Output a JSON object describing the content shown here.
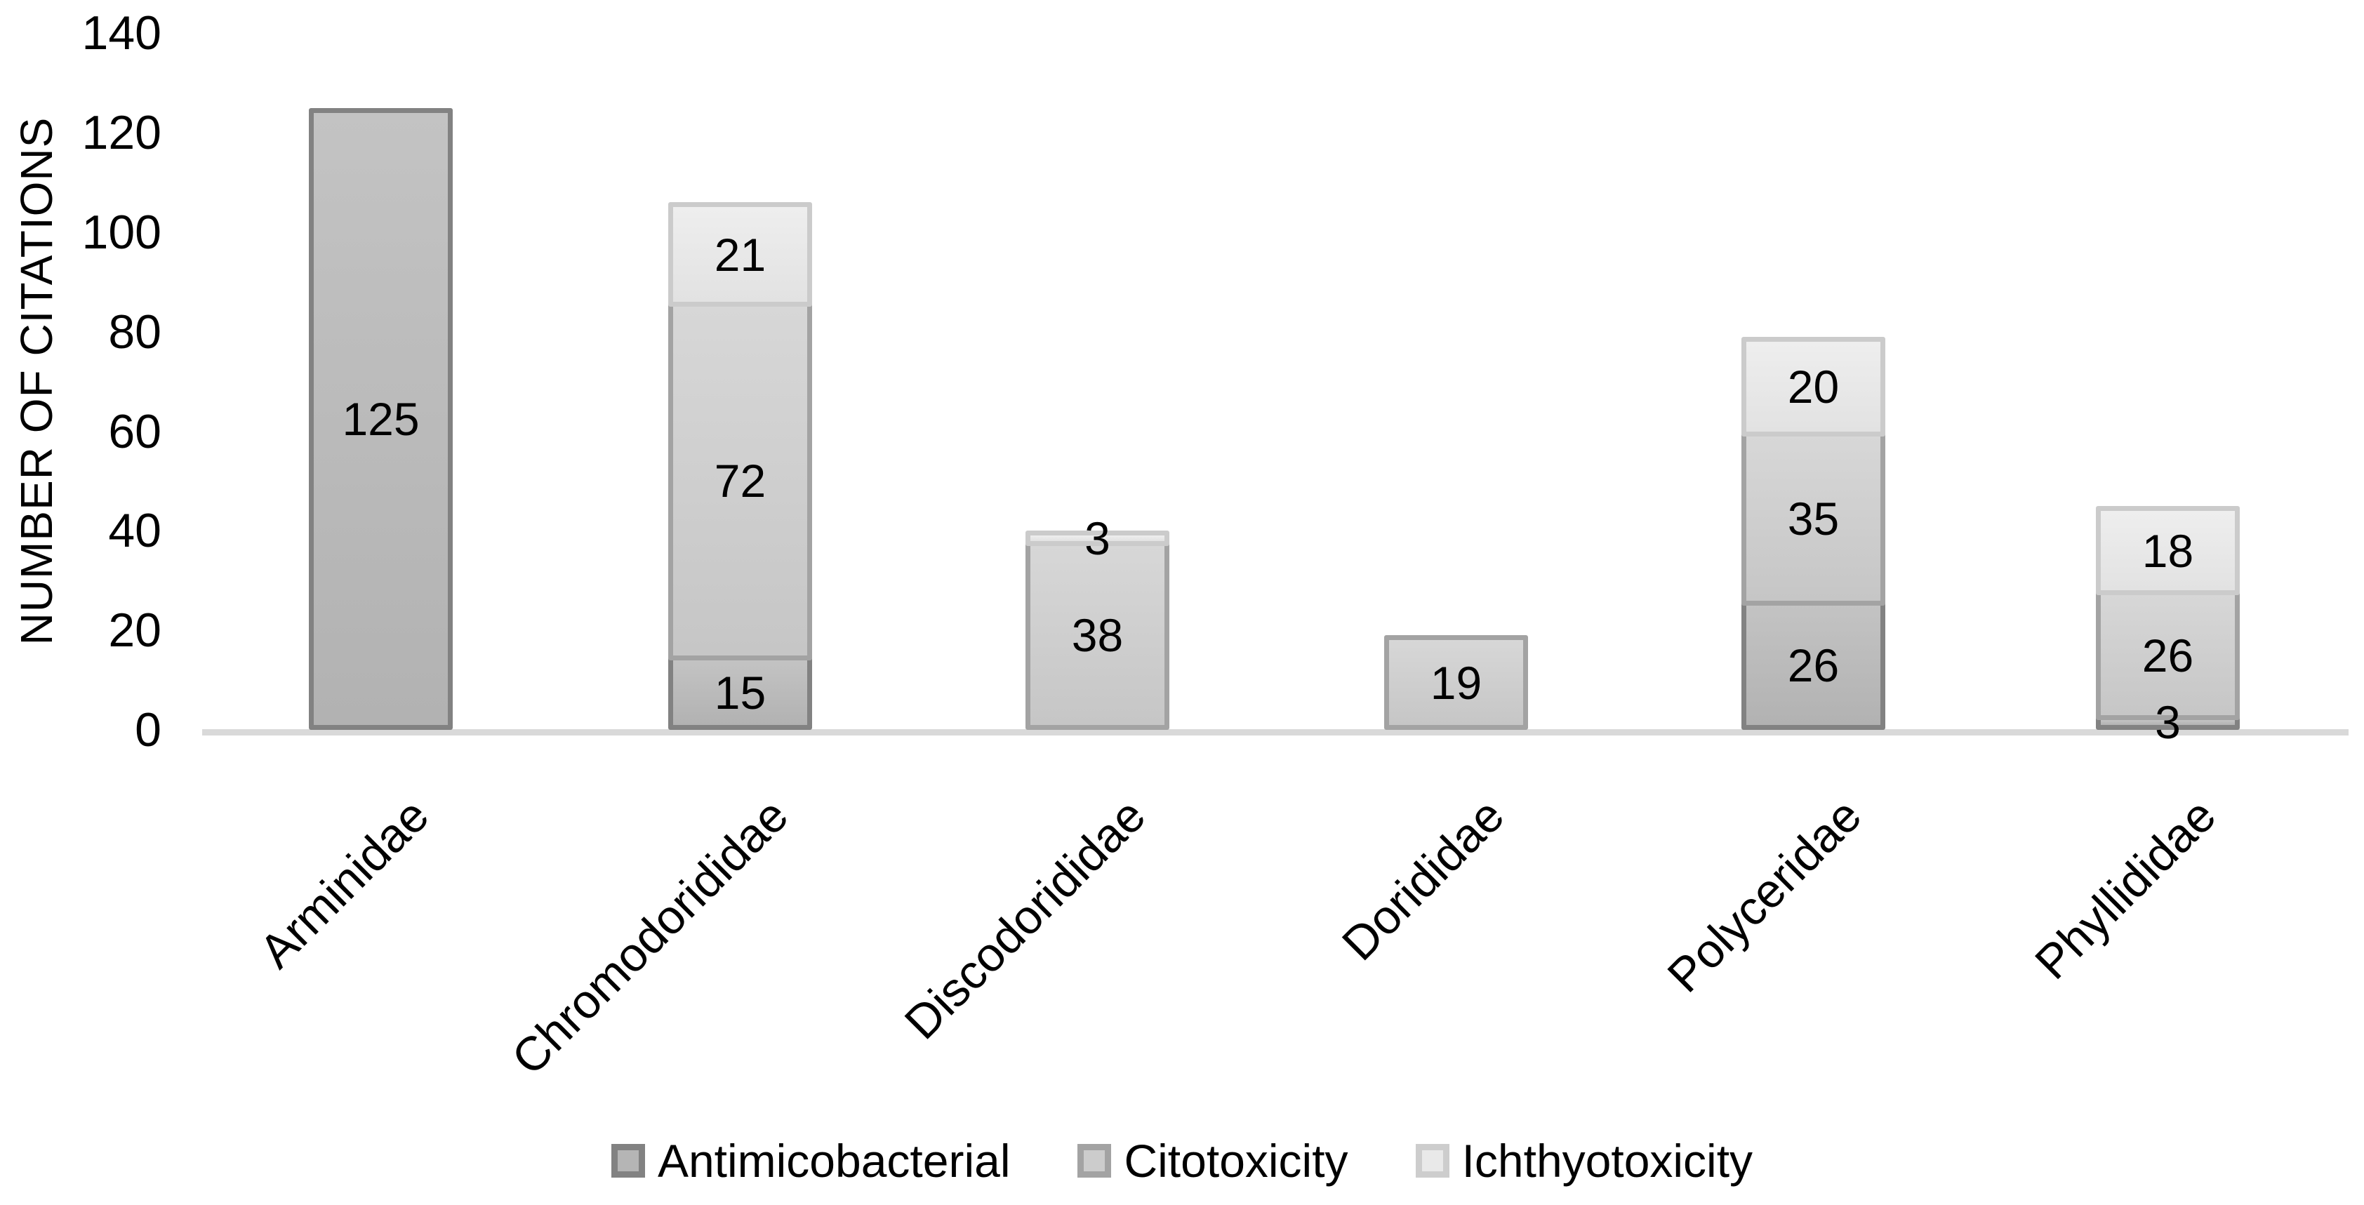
{
  "chart_data": {
    "type": "bar",
    "stacked": true,
    "title": "",
    "xlabel": "",
    "ylabel": "NUMBER OF CITATIONS",
    "ylim": [
      0,
      140
    ],
    "yticks": [
      0,
      20,
      40,
      60,
      80,
      100,
      120,
      140
    ],
    "grid": false,
    "legend_position": "bottom",
    "background_color": "#ffffff",
    "axis_line_color": "#d9d9d9",
    "categories": [
      "Arminidae",
      "Chromodorididae",
      "Discodorididae",
      "Dorididae",
      "Polyceridae",
      "Phyllididae"
    ],
    "series": [
      {
        "name": "Antimicobacterial",
        "values": [
          125,
          15,
          0,
          0,
          26,
          3
        ],
        "fill_top": "#c3c3c3",
        "fill_bottom": "#b2b2b2",
        "border": "#828282",
        "swatch_fill": "#b5b5b5"
      },
      {
        "name": "Citotoxicity",
        "values": [
          0,
          72,
          38,
          19,
          35,
          26
        ],
        "fill_top": "#d7d7d7",
        "fill_bottom": "#c6c6c6",
        "border": "#a3a3a3",
        "swatch_fill": "#cccccc"
      },
      {
        "name": "Ichthyotoxicity",
        "values": [
          0,
          21,
          3,
          0,
          20,
          18
        ],
        "fill_top": "#eeeeee",
        "fill_bottom": "#e2e2e2",
        "border": "#cbcbcb",
        "swatch_fill": "#e9e9e9"
      }
    ],
    "bar_value_labels_shown": true
  }
}
